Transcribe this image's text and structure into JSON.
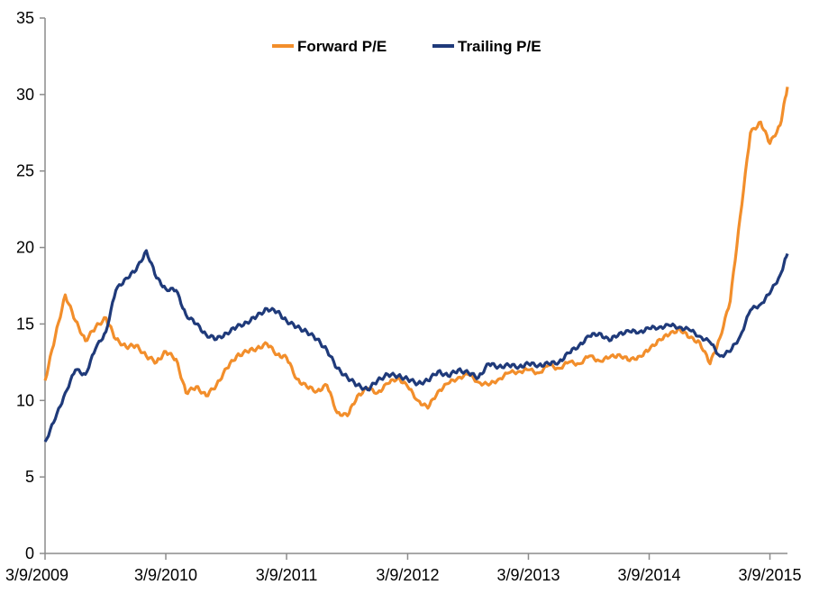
{
  "chart_data": {
    "type": "line",
    "title": "",
    "xlabel": "",
    "ylabel": "",
    "ylim": [
      0,
      35
    ],
    "y_ticks": [
      0,
      5,
      10,
      15,
      20,
      25,
      30,
      35
    ],
    "x_tick_labels": [
      "3/9/2009",
      "3/9/2010",
      "3/9/2011",
      "3/9/2012",
      "3/9/2013",
      "3/9/2014",
      "3/9/2015"
    ],
    "x_range": [
      "3/9/2009",
      "5/1/2015"
    ],
    "grid": false,
    "legend_position": "top-center",
    "x": [
      "3/9/2009",
      "4/9/2009",
      "5/9/2009",
      "6/9/2009",
      "7/9/2009",
      "8/9/2009",
      "9/9/2009",
      "10/9/2009",
      "11/9/2009",
      "12/9/2009",
      "1/9/2010",
      "2/9/2010",
      "3/9/2010",
      "4/9/2010",
      "5/9/2010",
      "6/9/2010",
      "7/9/2010",
      "8/9/2010",
      "9/9/2010",
      "10/9/2010",
      "11/9/2010",
      "12/9/2010",
      "1/9/2011",
      "2/9/2011",
      "3/9/2011",
      "4/9/2011",
      "5/9/2011",
      "6/9/2011",
      "7/9/2011",
      "8/9/2011",
      "9/9/2011",
      "10/9/2011",
      "11/9/2011",
      "12/9/2011",
      "1/9/2012",
      "2/9/2012",
      "3/9/2012",
      "4/9/2012",
      "5/9/2012",
      "6/9/2012",
      "7/9/2012",
      "8/9/2012",
      "9/9/2012",
      "10/9/2012",
      "11/9/2012",
      "12/9/2012",
      "1/9/2013",
      "2/9/2013",
      "3/9/2013",
      "4/9/2013",
      "5/9/2013",
      "6/9/2013",
      "7/9/2013",
      "8/9/2013",
      "9/9/2013",
      "10/9/2013",
      "11/9/2013",
      "12/9/2013",
      "1/9/2014",
      "2/9/2014",
      "3/9/2014",
      "4/9/2014",
      "5/9/2014",
      "6/9/2014",
      "7/9/2014",
      "8/9/2014",
      "9/9/2014",
      "10/9/2014",
      "11/9/2014",
      "12/9/2014",
      "1/9/2015",
      "2/9/2015",
      "3/9/2015",
      "4/9/2015",
      "5/1/2015"
    ],
    "series": [
      {
        "name": "Forward P/E",
        "color": "#F28E2B",
        "values": [
          11.3,
          14.2,
          16.9,
          15.2,
          13.9,
          14.8,
          15.4,
          14.0,
          13.5,
          13.6,
          12.9,
          12.5,
          13.2,
          12.7,
          10.5,
          10.9,
          10.3,
          11.0,
          12.1,
          12.9,
          13.2,
          13.4,
          13.7,
          13.0,
          12.8,
          11.4,
          10.9,
          10.6,
          11.0,
          9.2,
          9.0,
          10.3,
          10.8,
          10.5,
          11.1,
          11.5,
          10.9,
          10.0,
          9.5,
          10.6,
          11.1,
          11.5,
          11.7,
          11.2,
          11.0,
          11.4,
          11.8,
          11.9,
          12.0,
          11.8,
          12.3,
          12.1,
          12.5,
          12.4,
          12.9,
          12.6,
          12.8,
          13.0,
          12.6,
          12.9,
          13.3,
          14.0,
          14.3,
          14.7,
          14.1,
          13.8,
          12.4,
          14.1,
          16.5,
          22.0,
          27.5,
          28.2,
          26.8,
          28.0,
          30.5
        ]
      },
      {
        "name": "Trailing P/E",
        "color": "#1F3A7A",
        "values": [
          7.3,
          8.8,
          10.5,
          12.0,
          11.7,
          13.4,
          14.5,
          17.2,
          18.0,
          18.5,
          19.8,
          18.0,
          17.3,
          17.2,
          15.6,
          15.0,
          14.3,
          14.0,
          14.4,
          14.8,
          15.1,
          15.5,
          16.0,
          15.8,
          15.2,
          14.8,
          14.5,
          14.0,
          13.3,
          12.1,
          11.5,
          11.0,
          10.7,
          11.3,
          11.7,
          11.6,
          11.4,
          11.1,
          11.3,
          11.9,
          11.6,
          12.0,
          11.8,
          11.5,
          12.4,
          12.2,
          12.3,
          12.2,
          12.4,
          12.3,
          12.4,
          12.5,
          13.1,
          13.6,
          14.2,
          14.4,
          13.9,
          14.4,
          14.5,
          14.5,
          14.7,
          14.8,
          14.9,
          14.8,
          14.6,
          14.2,
          13.8,
          12.9,
          13.2,
          14.2,
          15.9,
          16.3,
          17.0,
          18.2,
          19.6
        ]
      }
    ]
  }
}
